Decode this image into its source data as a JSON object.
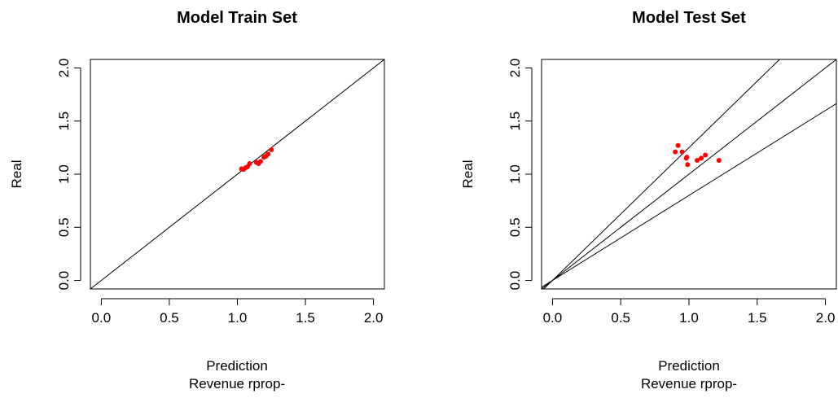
{
  "chart_data": [
    {
      "type": "scatter",
      "title": "Model Train Set",
      "xlabel": "Prediction",
      "xlabel2": "Revenue rprop-",
      "ylabel": "Real",
      "xlim": [
        -0.08,
        2.08
      ],
      "ylim": [
        -0.08,
        2.08
      ],
      "xticks": [
        "0.0",
        "0.5",
        "1.0",
        "1.5",
        "2.0"
      ],
      "yticks": [
        "0.0",
        "0.5",
        "1.0",
        "1.5",
        "2.0"
      ],
      "grid": false,
      "point_color": "#ff0000",
      "reference_lines": [
        {
          "slope": 1.0
        }
      ],
      "series": [
        {
          "x": [
            1.03,
            1.045,
            1.06,
            1.075,
            1.09,
            1.14,
            1.155,
            1.17,
            1.195,
            1.21,
            1.225,
            1.25
          ],
          "y": [
            1.05,
            1.045,
            1.06,
            1.07,
            1.1,
            1.11,
            1.1,
            1.12,
            1.16,
            1.17,
            1.19,
            1.23
          ]
        }
      ]
    },
    {
      "type": "scatter",
      "title": "Model Test Set",
      "xlabel": "Prediction",
      "xlabel2": "Revenue rprop-",
      "ylabel": "Real",
      "xlim": [
        -0.08,
        2.08
      ],
      "ylim": [
        -0.08,
        2.08
      ],
      "xticks": [
        "0.0",
        "0.5",
        "1.0",
        "1.5",
        "2.0"
      ],
      "yticks": [
        "0.0",
        "0.5",
        "1.0",
        "1.5",
        "2.0"
      ],
      "grid": false,
      "point_color": "#ff0000",
      "reference_lines": [
        {
          "slope": 1.25
        },
        {
          "slope": 1.0
        },
        {
          "slope": 0.8
        }
      ],
      "series": [
        {
          "x": [
            0.92,
            0.9,
            0.95,
            0.98,
            0.985,
            0.99,
            1.06,
            1.09,
            1.12,
            1.22
          ],
          "y": [
            1.27,
            1.21,
            1.21,
            1.15,
            1.16,
            1.09,
            1.13,
            1.15,
            1.18,
            1.13
          ]
        }
      ]
    }
  ]
}
